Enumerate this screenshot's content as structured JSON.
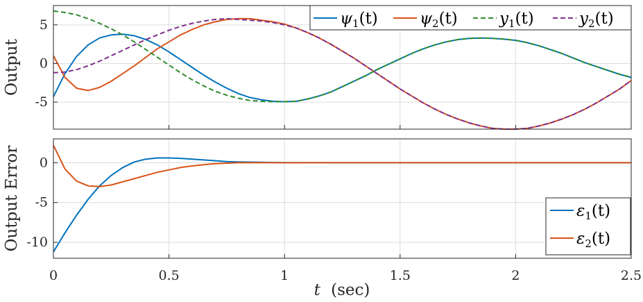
{
  "chart_data": [
    {
      "type": "line",
      "ylabel": "Output",
      "xlim": [
        0,
        2.5
      ],
      "ylim": [
        -8.5,
        7.5
      ],
      "yticks": [
        5,
        0,
        -5
      ],
      "ytick_labels": [
        "5",
        "0",
        "-5"
      ],
      "grid": true,
      "legend": {
        "placement": "top-right",
        "orientation": "horizontal"
      },
      "series": [
        {
          "name": "ψ1(t)",
          "legend_tex": [
            "ψ",
            "1",
            "(t)"
          ],
          "color": "#0072BD",
          "dash": "solid",
          "x": [
            0,
            0.05,
            0.1,
            0.15,
            0.2,
            0.25,
            0.3,
            0.35,
            0.4,
            0.45,
            0.5,
            0.55,
            0.6,
            0.65,
            0.7,
            0.75,
            0.8,
            0.85,
            0.9,
            0.95,
            1.0,
            1.05,
            1.1,
            1.15,
            1.2,
            1.25,
            1.3,
            1.35,
            1.4,
            1.45,
            1.5,
            1.55,
            1.6,
            1.65,
            1.7,
            1.75,
            1.8,
            1.85,
            1.9,
            1.95,
            2.0,
            2.05,
            2.1,
            2.15,
            2.2,
            2.25,
            2.3,
            2.35,
            2.4,
            2.45,
            2.5
          ],
          "y": [
            -4.3,
            -1.3,
            0.9,
            2.4,
            3.3,
            3.7,
            3.8,
            3.6,
            3.1,
            2.4,
            1.5,
            0.5,
            -0.5,
            -1.5,
            -2.4,
            -3.2,
            -3.9,
            -4.4,
            -4.7,
            -4.9,
            -4.95,
            -4.9,
            -4.6,
            -4.2,
            -3.7,
            -3.0,
            -2.3,
            -1.6,
            -0.8,
            -0.1,
            0.6,
            1.3,
            1.9,
            2.4,
            2.8,
            3.1,
            3.25,
            3.3,
            3.25,
            3.15,
            3.0,
            2.7,
            2.3,
            1.8,
            1.3,
            0.7,
            0.1,
            -0.4,
            -0.9,
            -1.4,
            -1.8
          ]
        },
        {
          "name": "ψ2(t)",
          "legend_tex": [
            "ψ",
            "2",
            "(t)"
          ],
          "color": "#D95319",
          "dash": "solid",
          "x": [
            0,
            0.05,
            0.1,
            0.15,
            0.2,
            0.25,
            0.3,
            0.35,
            0.4,
            0.45,
            0.5,
            0.55,
            0.6,
            0.65,
            0.7,
            0.75,
            0.8,
            0.85,
            0.9,
            0.95,
            1.0,
            1.05,
            1.1,
            1.15,
            1.2,
            1.25,
            1.3,
            1.35,
            1.4,
            1.45,
            1.5,
            1.55,
            1.6,
            1.65,
            1.7,
            1.75,
            1.8,
            1.85,
            1.9,
            1.95,
            2.0,
            2.05,
            2.1,
            2.15,
            2.2,
            2.25,
            2.3,
            2.35,
            2.4,
            2.45,
            2.5
          ],
          "y": [
            1.0,
            -1.8,
            -3.2,
            -3.5,
            -3.1,
            -2.3,
            -1.3,
            -0.3,
            0.8,
            1.9,
            2.8,
            3.7,
            4.4,
            5.0,
            5.4,
            5.7,
            5.8,
            5.8,
            5.6,
            5.4,
            5.1,
            4.6,
            4.0,
            3.3,
            2.5,
            1.6,
            0.7,
            -0.3,
            -1.3,
            -2.3,
            -3.3,
            -4.2,
            -5.1,
            -5.9,
            -6.6,
            -7.2,
            -7.7,
            -8.1,
            -8.4,
            -8.5,
            -8.5,
            -8.4,
            -8.1,
            -7.7,
            -7.2,
            -6.6,
            -5.9,
            -5.1,
            -4.2,
            -3.3,
            -2.2
          ]
        },
        {
          "name": "y1(t)",
          "legend_tex": [
            "y",
            "1",
            "(t)"
          ],
          "color": "#2E8B2E",
          "dash": "dashed",
          "x": [
            0,
            0.05,
            0.1,
            0.15,
            0.2,
            0.25,
            0.3,
            0.35,
            0.4,
            0.45,
            0.5,
            0.55,
            0.6,
            0.65,
            0.7,
            0.75,
            0.8,
            0.85,
            0.9,
            0.95,
            1.0,
            1.05,
            1.1,
            1.15,
            1.2,
            1.25,
            1.3,
            1.35,
            1.4,
            1.45,
            1.5,
            1.55,
            1.6,
            1.65,
            1.7,
            1.75,
            1.8,
            1.85,
            1.9,
            1.95,
            2.0,
            2.05,
            2.1,
            2.15,
            2.2,
            2.25,
            2.3,
            2.35,
            2.4,
            2.45,
            2.5
          ],
          "y": [
            6.8,
            6.6,
            6.3,
            5.8,
            5.2,
            4.5,
            3.7,
            2.8,
            1.8,
            0.8,
            -0.2,
            -1.2,
            -2.1,
            -2.9,
            -3.6,
            -4.1,
            -4.5,
            -4.8,
            -4.9,
            -4.95,
            -4.95,
            -4.9,
            -4.6,
            -4.2,
            -3.7,
            -3.0,
            -2.3,
            -1.6,
            -0.8,
            -0.1,
            0.6,
            1.3,
            1.9,
            2.4,
            2.8,
            3.1,
            3.25,
            3.3,
            3.25,
            3.15,
            3.0,
            2.7,
            2.3,
            1.8,
            1.3,
            0.7,
            0.1,
            -0.4,
            -0.9,
            -1.4,
            -1.8
          ]
        },
        {
          "name": "y2(t)",
          "legend_tex": [
            "y",
            "2",
            "(t)"
          ],
          "color": "#7E2F8E",
          "dash": "dashed",
          "x": [
            0,
            0.05,
            0.1,
            0.15,
            0.2,
            0.25,
            0.3,
            0.35,
            0.4,
            0.45,
            0.5,
            0.55,
            0.6,
            0.65,
            0.7,
            0.75,
            0.8,
            0.85,
            0.9,
            0.95,
            1.0,
            1.05,
            1.1,
            1.15,
            1.2,
            1.25,
            1.3,
            1.35,
            1.4,
            1.45,
            1.5,
            1.55,
            1.6,
            1.65,
            1.7,
            1.75,
            1.8,
            1.85,
            1.9,
            1.95,
            2.0,
            2.05,
            2.1,
            2.15,
            2.2,
            2.25,
            2.3,
            2.35,
            2.4,
            2.45,
            2.5
          ],
          "y": [
            -1.2,
            -1.1,
            -0.8,
            -0.3,
            0.3,
            1.0,
            1.7,
            2.4,
            3.1,
            3.7,
            4.3,
            4.8,
            5.2,
            5.5,
            5.7,
            5.8,
            5.7,
            5.6,
            5.5,
            5.3,
            5.0,
            4.6,
            4.0,
            3.3,
            2.5,
            1.6,
            0.7,
            -0.3,
            -1.3,
            -2.3,
            -3.3,
            -4.2,
            -5.1,
            -5.9,
            -6.6,
            -7.2,
            -7.7,
            -8.1,
            -8.4,
            -8.5,
            -8.5,
            -8.4,
            -8.1,
            -7.7,
            -7.2,
            -6.6,
            -5.9,
            -5.1,
            -4.2,
            -3.3,
            -2.2
          ]
        }
      ]
    },
    {
      "type": "line",
      "ylabel": "Output Error",
      "xlabel": "t (sec)",
      "xlabel_parts": [
        "t",
        "(sec)"
      ],
      "xlim": [
        0,
        2.5
      ],
      "ylim": [
        -12,
        3
      ],
      "yticks": [
        0,
        -5,
        -10
      ],
      "ytick_labels": [
        "0",
        "-5",
        "-10"
      ],
      "xticks": [
        0,
        0.5,
        1,
        1.5,
        2,
        2.5
      ],
      "xtick_labels": [
        "0",
        "0.5",
        "1",
        "1.5",
        "2",
        "2.5"
      ],
      "grid": true,
      "legend": {
        "placement": "bottom-right",
        "orientation": "vertical"
      },
      "series": [
        {
          "name": "ε1(t)",
          "legend_tex": [
            "ε",
            "1",
            "(t)"
          ],
          "color": "#0072BD",
          "dash": "solid",
          "x": [
            0,
            0.05,
            0.1,
            0.15,
            0.2,
            0.25,
            0.3,
            0.35,
            0.4,
            0.45,
            0.5,
            0.55,
            0.6,
            0.65,
            0.7,
            0.75,
            0.8,
            0.9,
            1.0,
            1.2,
            1.5,
            2.0,
            2.5
          ],
          "y": [
            -11.2,
            -8.8,
            -6.6,
            -4.6,
            -2.9,
            -1.6,
            -0.6,
            0.1,
            0.45,
            0.6,
            0.6,
            0.55,
            0.45,
            0.35,
            0.25,
            0.15,
            0.1,
            0.05,
            0.02,
            0.0,
            0.0,
            0.0,
            0.0
          ]
        },
        {
          "name": "ε2(t)",
          "legend_tex": [
            "ε",
            "2",
            "(t)"
          ],
          "color": "#D95319",
          "dash": "solid",
          "x": [
            0,
            0.05,
            0.1,
            0.15,
            0.2,
            0.25,
            0.3,
            0.35,
            0.4,
            0.45,
            0.5,
            0.55,
            0.6,
            0.65,
            0.7,
            0.75,
            0.8,
            0.9,
            1.0,
            1.2,
            1.5,
            2.0,
            2.5
          ],
          "y": [
            2.2,
            -0.8,
            -2.3,
            -2.9,
            -3.0,
            -2.8,
            -2.4,
            -2.0,
            -1.6,
            -1.2,
            -0.9,
            -0.6,
            -0.4,
            -0.25,
            -0.12,
            -0.05,
            0.0,
            0.02,
            0.0,
            0.0,
            0.0,
            0.0,
            0.0
          ]
        }
      ]
    }
  ]
}
